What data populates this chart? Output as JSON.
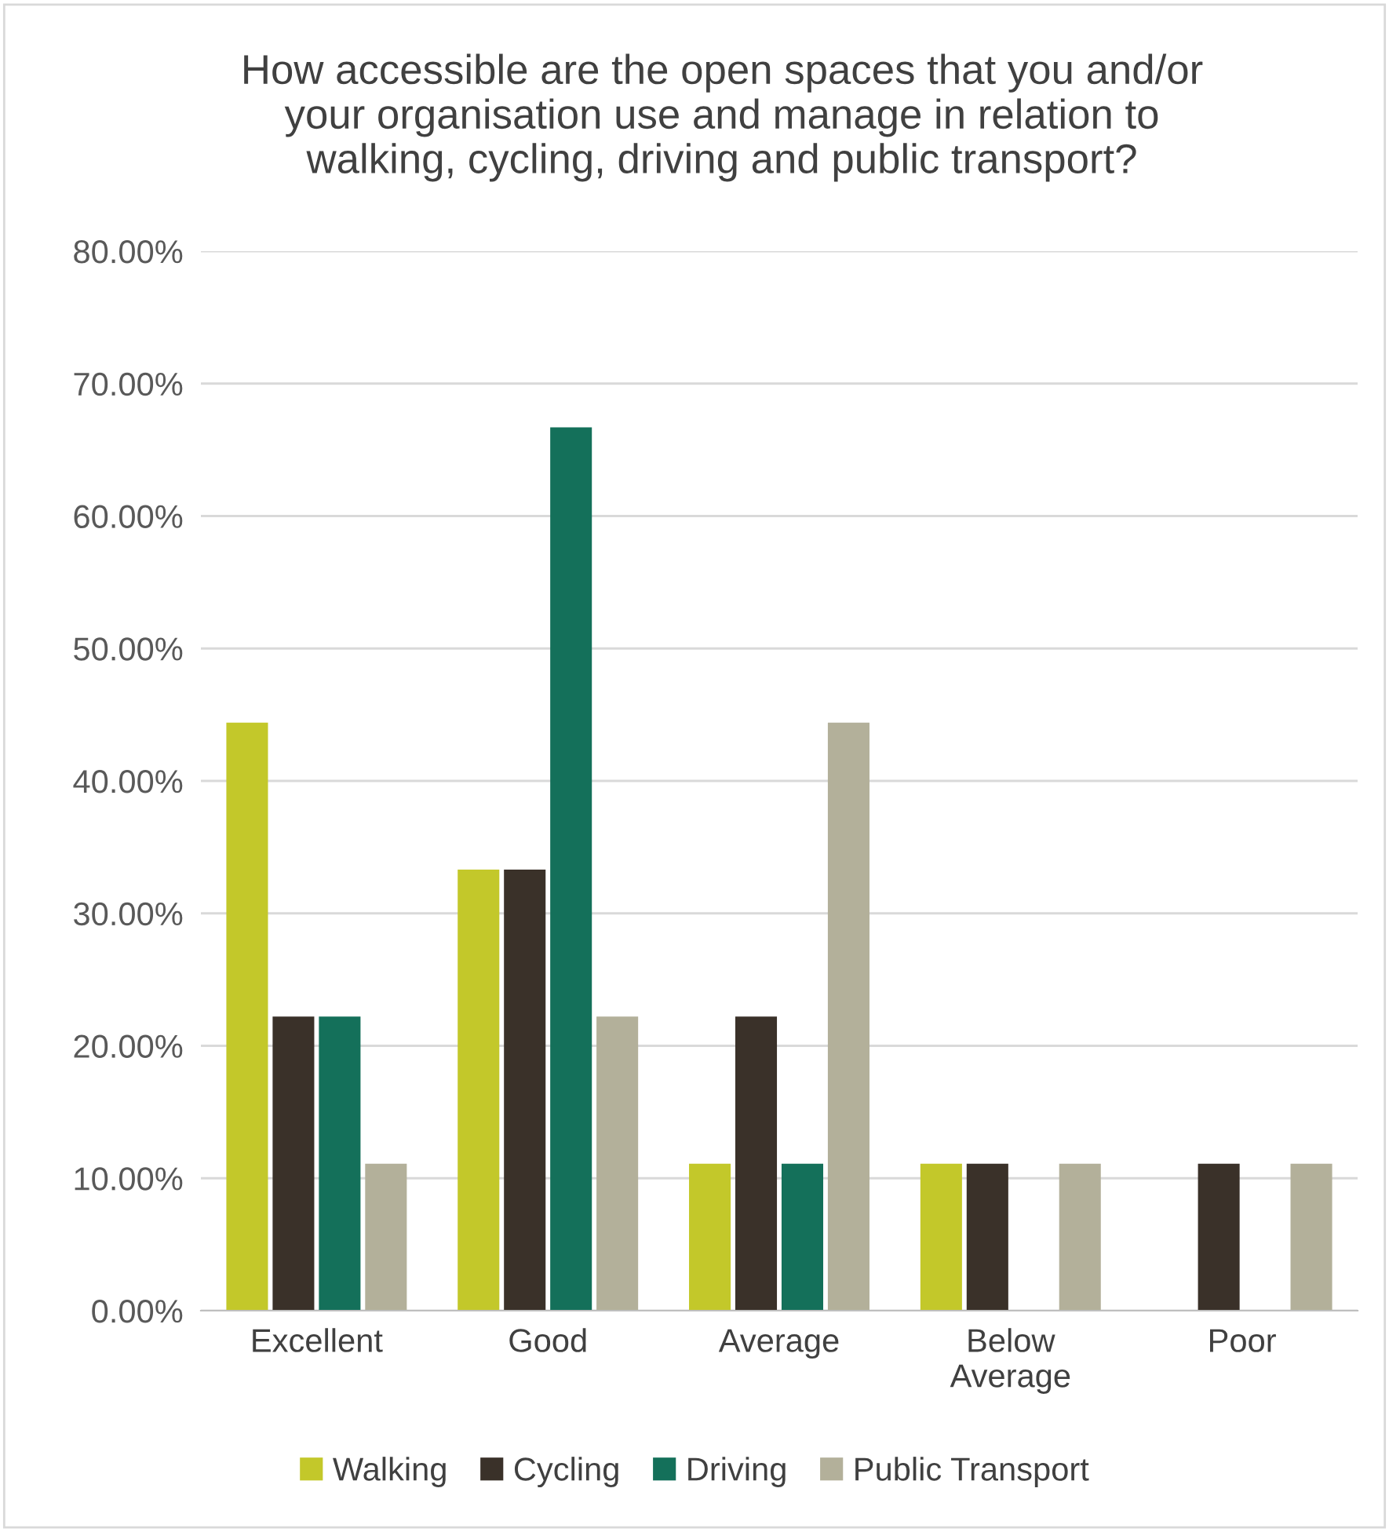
{
  "chart_data": {
    "type": "bar",
    "title": "How accessible are the open spaces that you and/or\nyour organisation use and manage in relation to\nwalking, cycling, driving and public transport?",
    "categories": [
      "Excellent",
      "Good",
      "Average",
      "Below\nAverage",
      "Poor"
    ],
    "series": [
      {
        "name": "Walking",
        "color": "#c3c82a",
        "values": [
          44.4,
          33.3,
          11.1,
          11.1,
          0
        ]
      },
      {
        "name": "Cycling",
        "color": "#3a3129",
        "values": [
          22.2,
          33.3,
          22.2,
          11.1,
          11.1
        ]
      },
      {
        "name": "Driving",
        "color": "#14705a",
        "values": [
          22.2,
          66.7,
          11.1,
          0,
          0
        ]
      },
      {
        "name": "Public Transport",
        "color": "#b3b09a",
        "values": [
          11.1,
          22.2,
          44.4,
          11.1,
          11.1
        ]
      }
    ],
    "ylim": [
      0,
      80
    ],
    "yticks": [
      {
        "value": 0,
        "label": "0.00%"
      },
      {
        "value": 10,
        "label": "10.00%"
      },
      {
        "value": 20,
        "label": "20.00%"
      },
      {
        "value": 30,
        "label": "30.00%"
      },
      {
        "value": 40,
        "label": "40.00%"
      },
      {
        "value": 50,
        "label": "50.00%"
      },
      {
        "value": 60,
        "label": "60.00%"
      },
      {
        "value": 70,
        "label": "70.00%"
      },
      {
        "value": 80,
        "label": "80.00%"
      }
    ],
    "grid": "y",
    "legend": "bottom"
  }
}
